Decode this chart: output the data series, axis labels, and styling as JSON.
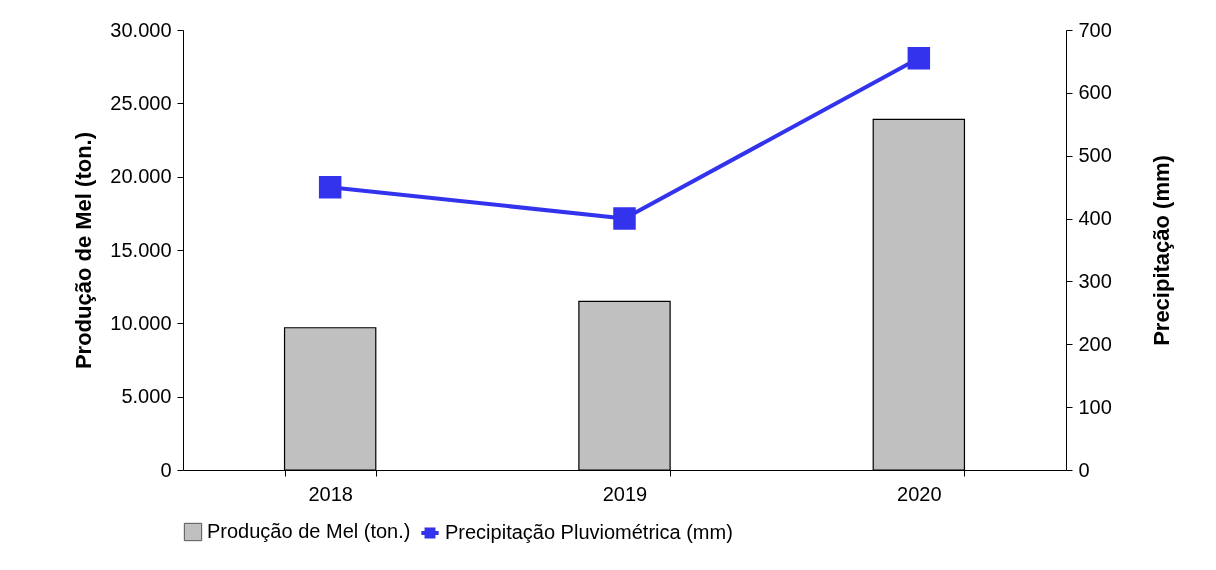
{
  "chart_data": {
    "type": "bar",
    "categories": [
      "2018",
      "2019",
      "2020"
    ],
    "series": [
      {
        "name": "Produção de Mel (ton.)",
        "type": "bar",
        "color": "#c0c0c0",
        "values": [
          9700,
          11500,
          23900
        ]
      },
      {
        "name": "Precipitação Pluviométrica (mm)",
        "type": "line",
        "axis": "y2",
        "color": "#3333ee",
        "values": [
          450,
          400,
          655
        ]
      }
    ],
    "ylabel": "Produção de Mel (ton.)",
    "y2label": "Precipitação  (mm)",
    "ylim": [
      0,
      30000
    ],
    "yticks": [
      0,
      {
        "value": 5000,
        "label": "5.000"
      },
      {
        "value": 10000,
        "label": "10.000"
      },
      {
        "value": 15000,
        "label": "15.000"
      },
      {
        "value": 20000,
        "label": "20.000"
      },
      {
        "value": 25000,
        "label": "25.000"
      },
      {
        "value": 30000,
        "label": "30.000"
      }
    ],
    "y2lim": [
      0,
      700
    ],
    "y2ticks": [
      0,
      100,
      200,
      300,
      400,
      500,
      600,
      700
    ],
    "legend": "bottom",
    "marker": "square",
    "grid": false
  }
}
